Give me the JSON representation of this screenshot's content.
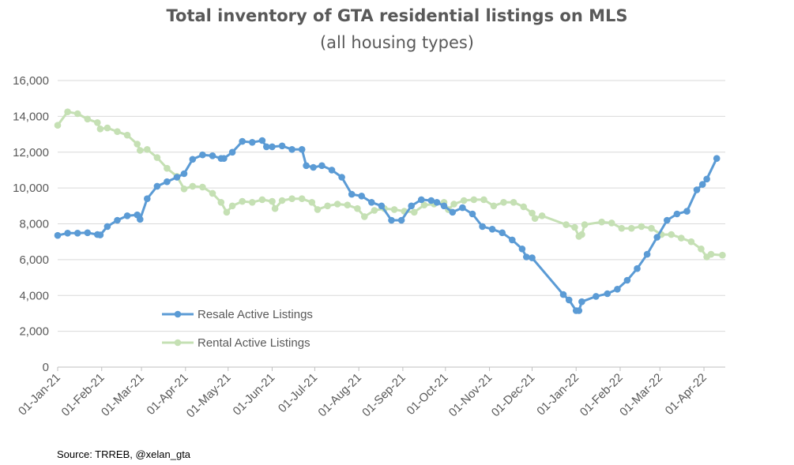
{
  "colors": {
    "resale": "#5B9BD5",
    "rental": "#C5E0B4",
    "grid": "#D9D9D9",
    "axis_text": "#595959"
  },
  "source": "Source: TRREB, @xelan_gta",
  "chart_data": {
    "type": "line",
    "title": "Total inventory of GTA residential listings on MLS",
    "subtitle": "(all housing types)",
    "xlabel": "",
    "ylabel": "",
    "ylim": [
      0,
      16000
    ],
    "y_ticks": [
      0,
      2000,
      4000,
      6000,
      8000,
      10000,
      12000,
      14000,
      16000
    ],
    "y_tick_labels": [
      "0",
      "2,000",
      "4,000",
      "6,000",
      "8,000",
      "10,000",
      "12,000",
      "14,000",
      "16,000"
    ],
    "x_range": [
      "2021-01-01",
      "2022-04-16"
    ],
    "x_ticks": [
      "2021-01-01",
      "2021-02-01",
      "2021-03-01",
      "2021-04-01",
      "2021-05-01",
      "2021-06-01",
      "2021-07-01",
      "2021-08-01",
      "2021-09-01",
      "2021-10-01",
      "2021-11-01",
      "2021-12-01",
      "2022-01-01",
      "2022-02-01",
      "2022-03-01",
      "2022-04-01"
    ],
    "x_tick_labels": [
      "01-Jan-21",
      "01-Feb-21",
      "01-Mar-21",
      "01-Apr-21",
      "01-May-21",
      "01-Jun-21",
      "01-Jul-21",
      "01-Aug-21",
      "01-Sep-21",
      "01-Oct-21",
      "01-Nov-21",
      "01-Dec-21",
      "01-Jan-22",
      "01-Feb-22",
      "01-Mar-22",
      "01-Apr-22"
    ],
    "grid": "horizontal",
    "legend": "bottom-left inside plot",
    "series": [
      {
        "name": "Resale Active Listings",
        "color": "#5B9BD5",
        "points": [
          [
            "2021-01-01",
            7350
          ],
          [
            "2021-01-08",
            7480
          ],
          [
            "2021-01-15",
            7480
          ],
          [
            "2021-01-22",
            7500
          ],
          [
            "2021-01-29",
            7400
          ],
          [
            "2021-01-31",
            7380
          ],
          [
            "2021-02-05",
            7850
          ],
          [
            "2021-02-12",
            8200
          ],
          [
            "2021-02-19",
            8450
          ],
          [
            "2021-02-26",
            8500
          ],
          [
            "2021-02-28",
            8250
          ],
          [
            "2021-03-05",
            9400
          ],
          [
            "2021-03-12",
            10100
          ],
          [
            "2021-03-19",
            10350
          ],
          [
            "2021-03-26",
            10600
          ],
          [
            "2021-03-31",
            10800
          ],
          [
            "2021-04-06",
            11600
          ],
          [
            "2021-04-13",
            11850
          ],
          [
            "2021-04-20",
            11800
          ],
          [
            "2021-04-26",
            11650
          ],
          [
            "2021-04-28",
            11650
          ],
          [
            "2021-05-04",
            12000
          ],
          [
            "2021-05-11",
            12600
          ],
          [
            "2021-05-18",
            12550
          ],
          [
            "2021-05-25",
            12650
          ],
          [
            "2021-05-28",
            12300
          ],
          [
            "2021-06-01",
            12300
          ],
          [
            "2021-06-08",
            12350
          ],
          [
            "2021-06-15",
            12150
          ],
          [
            "2021-06-22",
            12150
          ],
          [
            "2021-06-25",
            11250
          ],
          [
            "2021-06-30",
            11150
          ],
          [
            "2021-07-06",
            11250
          ],
          [
            "2021-07-13",
            11000
          ],
          [
            "2021-07-20",
            10600
          ],
          [
            "2021-07-27",
            9650
          ],
          [
            "2021-08-03",
            9550
          ],
          [
            "2021-08-10",
            9200
          ],
          [
            "2021-08-17",
            9000
          ],
          [
            "2021-08-24",
            8200
          ],
          [
            "2021-08-31",
            8200
          ],
          [
            "2021-09-07",
            9000
          ],
          [
            "2021-09-14",
            9350
          ],
          [
            "2021-09-21",
            9300
          ],
          [
            "2021-09-25",
            9200
          ],
          [
            "2021-09-30",
            9000
          ],
          [
            "2021-10-06",
            8650
          ],
          [
            "2021-10-13",
            8900
          ],
          [
            "2021-10-20",
            8550
          ],
          [
            "2021-10-27",
            7850
          ],
          [
            "2021-11-03",
            7700
          ],
          [
            "2021-11-10",
            7500
          ],
          [
            "2021-11-17",
            7100
          ],
          [
            "2021-11-24",
            6600
          ],
          [
            "2021-11-27",
            6150
          ],
          [
            "2021-12-01",
            6100
          ],
          [
            "2021-12-23",
            4050
          ],
          [
            "2021-12-27",
            3750
          ],
          [
            "2022-01-01",
            3150
          ],
          [
            "2022-01-03",
            3150
          ],
          [
            "2022-01-05",
            3650
          ],
          [
            "2022-01-15",
            3950
          ],
          [
            "2022-01-23",
            4100
          ],
          [
            "2022-01-30",
            4350
          ],
          [
            "2022-02-06",
            4850
          ],
          [
            "2022-02-13",
            5500
          ],
          [
            "2022-02-20",
            6300
          ],
          [
            "2022-02-27",
            7250
          ],
          [
            "2022-03-06",
            8200
          ],
          [
            "2022-03-13",
            8550
          ],
          [
            "2022-03-20",
            8700
          ],
          [
            "2022-03-27",
            9900
          ],
          [
            "2022-03-31",
            10200
          ],
          [
            "2022-04-03",
            10500
          ],
          [
            "2022-04-10",
            11650
          ]
        ]
      },
      {
        "name": "Rental Active Listings",
        "color": "#C5E0B4",
        "points": [
          [
            "2021-01-01",
            13500
          ],
          [
            "2021-01-08",
            14250
          ],
          [
            "2021-01-15",
            14150
          ],
          [
            "2021-01-22",
            13850
          ],
          [
            "2021-01-29",
            13650
          ],
          [
            "2021-01-31",
            13300
          ],
          [
            "2021-02-05",
            13350
          ],
          [
            "2021-02-12",
            13150
          ],
          [
            "2021-02-19",
            12950
          ],
          [
            "2021-02-26",
            12450
          ],
          [
            "2021-02-28",
            12100
          ],
          [
            "2021-03-05",
            12150
          ],
          [
            "2021-03-12",
            11700
          ],
          [
            "2021-03-19",
            11100
          ],
          [
            "2021-03-26",
            10650
          ],
          [
            "2021-03-31",
            9950
          ],
          [
            "2021-04-06",
            10100
          ],
          [
            "2021-04-13",
            10050
          ],
          [
            "2021-04-20",
            9700
          ],
          [
            "2021-04-26",
            9200
          ],
          [
            "2021-04-30",
            8650
          ],
          [
            "2021-05-04",
            9000
          ],
          [
            "2021-05-11",
            9250
          ],
          [
            "2021-05-18",
            9200
          ],
          [
            "2021-05-25",
            9350
          ],
          [
            "2021-06-01",
            9250
          ],
          [
            "2021-06-03",
            8850
          ],
          [
            "2021-06-08",
            9300
          ],
          [
            "2021-06-15",
            9400
          ],
          [
            "2021-06-22",
            9400
          ],
          [
            "2021-06-29",
            9200
          ],
          [
            "2021-07-03",
            8800
          ],
          [
            "2021-07-10",
            9000
          ],
          [
            "2021-07-17",
            9100
          ],
          [
            "2021-07-24",
            9050
          ],
          [
            "2021-07-31",
            8850
          ],
          [
            "2021-08-05",
            8400
          ],
          [
            "2021-08-12",
            8750
          ],
          [
            "2021-08-19",
            8850
          ],
          [
            "2021-08-26",
            8800
          ],
          [
            "2021-09-02",
            8700
          ],
          [
            "2021-09-09",
            8650
          ],
          [
            "2021-09-16",
            9050
          ],
          [
            "2021-09-23",
            9100
          ],
          [
            "2021-09-30",
            9200
          ],
          [
            "2021-10-03",
            8800
          ],
          [
            "2021-10-07",
            9100
          ],
          [
            "2021-10-14",
            9300
          ],
          [
            "2021-10-21",
            9350
          ],
          [
            "2021-10-28",
            9350
          ],
          [
            "2021-11-04",
            9000
          ],
          [
            "2021-11-11",
            9200
          ],
          [
            "2021-11-18",
            9200
          ],
          [
            "2021-11-25",
            8950
          ],
          [
            "2021-12-01",
            8600
          ],
          [
            "2021-12-03",
            8300
          ],
          [
            "2021-12-08",
            8450
          ],
          [
            "2021-12-25",
            7950
          ],
          [
            "2021-12-31",
            7800
          ],
          [
            "2022-01-03",
            7300
          ],
          [
            "2022-01-05",
            7400
          ],
          [
            "2022-01-07",
            7950
          ],
          [
            "2022-01-19",
            8100
          ],
          [
            "2022-01-26",
            8050
          ],
          [
            "2022-02-02",
            7750
          ],
          [
            "2022-02-09",
            7750
          ],
          [
            "2022-02-16",
            7850
          ],
          [
            "2022-02-23",
            7750
          ],
          [
            "2022-03-02",
            7400
          ],
          [
            "2022-03-09",
            7400
          ],
          [
            "2022-03-16",
            7200
          ],
          [
            "2022-03-23",
            7000
          ],
          [
            "2022-03-30",
            6600
          ],
          [
            "2022-04-03",
            6150
          ],
          [
            "2022-04-06",
            6300
          ],
          [
            "2022-04-14",
            6250
          ]
        ]
      }
    ]
  }
}
